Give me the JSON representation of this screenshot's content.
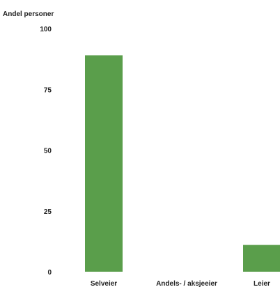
{
  "chart_data": {
    "type": "bar",
    "title": "",
    "xlabel": "",
    "ylabel": "Andel personer",
    "categories": [
      "Selveier",
      "Andels- / aksjeeier",
      "Leier"
    ],
    "values": [
      89,
      0,
      11
    ],
    "ylim": [
      0,
      100
    ],
    "yticks": [
      "0",
      "25",
      "50",
      "75",
      "100"
    ],
    "grid": false,
    "bar_color": "#5a9e4b"
  }
}
